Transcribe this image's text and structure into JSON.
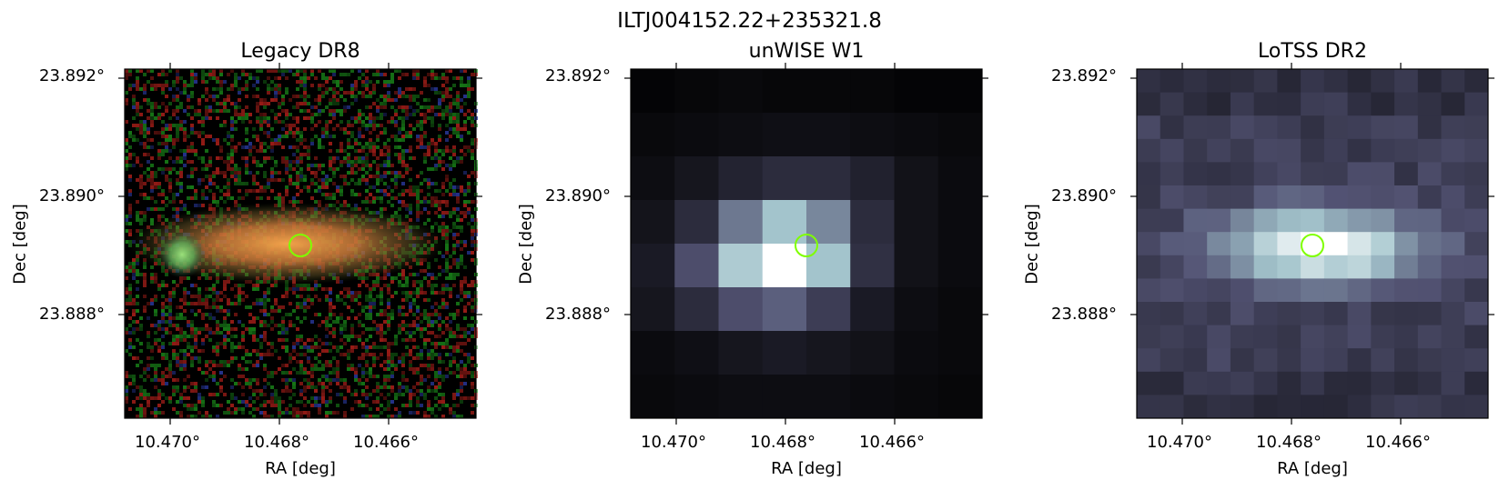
{
  "suptitle": "ILTJ004152.22+235321.8",
  "panels": [
    {
      "title": "Legacy DR8",
      "xlabel": "RA [deg]",
      "ylabel": "Dec [deg]",
      "xticks": [
        "10.470°",
        "10.468°",
        "10.466°"
      ],
      "yticks": [
        "23.892°",
        "23.890°",
        "23.888°"
      ]
    },
    {
      "title": "unWISE W1",
      "xlabel": "RA [deg]",
      "ylabel": "Dec [deg]",
      "xticks": [
        "10.470°",
        "10.468°",
        "10.466°"
      ],
      "yticks": [
        "23.892°",
        "23.890°",
        "23.888°"
      ]
    },
    {
      "title": "LoTSS DR2",
      "xlabel": "RA [deg]",
      "ylabel": "Dec [deg]",
      "xticks": [
        "10.470°",
        "10.468°",
        "10.466°"
      ],
      "yticks": [
        "23.892°",
        "23.890°",
        "23.888°"
      ]
    }
  ],
  "marker_color": "#7fff00"
}
